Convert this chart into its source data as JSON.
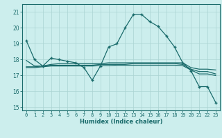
{
  "title": "",
  "xlabel": "Humidex (Indice chaleur)",
  "background_color": "#cceeed",
  "grid_color": "#aad4d2",
  "line_color": "#1a6b6b",
  "xlim": [
    -0.5,
    23.5
  ],
  "ylim": [
    14.8,
    21.5
  ],
  "yticks": [
    15,
    16,
    17,
    18,
    19,
    20,
    21
  ],
  "xticks": [
    0,
    1,
    2,
    3,
    4,
    5,
    6,
    7,
    8,
    9,
    10,
    11,
    12,
    13,
    14,
    15,
    16,
    17,
    18,
    19,
    20,
    21,
    22,
    23
  ],
  "series": [
    {
      "x": [
        0,
        1,
        2,
        3,
        4,
        5,
        6,
        7,
        8,
        9,
        10,
        11,
        12,
        13,
        14,
        15,
        16,
        17,
        18,
        19,
        20,
        21,
        22,
        23
      ],
      "y": [
        19.2,
        18.0,
        17.6,
        18.1,
        18.0,
        17.9,
        17.8,
        17.5,
        16.7,
        17.6,
        18.8,
        19.0,
        20.0,
        20.85,
        20.85,
        20.4,
        20.1,
        19.5,
        18.8,
        17.8,
        17.3,
        16.3,
        16.3,
        15.3
      ],
      "marker": "+"
    },
    {
      "x": [
        0,
        1,
        2,
        3,
        4,
        5,
        6,
        7,
        8,
        9,
        10,
        11,
        12,
        13,
        14,
        15,
        16,
        17,
        18,
        19,
        20,
        21,
        22,
        23
      ],
      "y": [
        17.95,
        17.6,
        17.6,
        17.7,
        17.75,
        17.75,
        17.75,
        17.75,
        17.75,
        17.75,
        17.8,
        17.8,
        17.8,
        17.8,
        17.8,
        17.8,
        17.8,
        17.8,
        17.8,
        17.8,
        17.5,
        17.4,
        17.4,
        17.35
      ],
      "marker": null
    },
    {
      "x": [
        0,
        1,
        2,
        3,
        4,
        5,
        6,
        7,
        8,
        9,
        10,
        11,
        12,
        13,
        14,
        15,
        16,
        17,
        18,
        19,
        20,
        21,
        22,
        23
      ],
      "y": [
        17.55,
        17.55,
        17.6,
        17.65,
        17.65,
        17.65,
        17.65,
        17.65,
        17.65,
        17.7,
        17.7,
        17.7,
        17.7,
        17.75,
        17.75,
        17.75,
        17.75,
        17.75,
        17.75,
        17.7,
        17.4,
        17.25,
        17.25,
        17.1
      ],
      "marker": null
    },
    {
      "x": [
        0,
        1,
        2,
        3,
        4,
        5,
        6,
        7,
        8,
        9,
        10,
        11,
        12,
        13,
        14,
        15,
        16,
        17,
        18,
        19,
        20,
        21,
        22,
        23
      ],
      "y": [
        17.5,
        17.5,
        17.55,
        17.6,
        17.6,
        17.6,
        17.6,
        17.6,
        17.6,
        17.62,
        17.62,
        17.65,
        17.65,
        17.65,
        17.65,
        17.65,
        17.65,
        17.65,
        17.65,
        17.62,
        17.35,
        17.1,
        17.1,
        17.0
      ],
      "marker": null
    }
  ]
}
